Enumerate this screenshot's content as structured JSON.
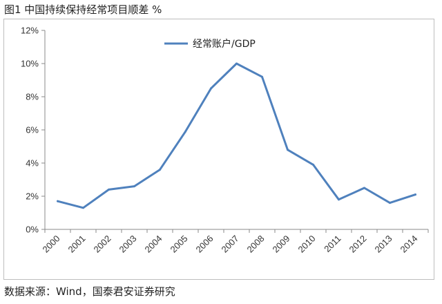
{
  "figure": {
    "title": "图1  中国持续保持经常项目顺差  %",
    "source": "数据来源：Wind，国泰君安证券研究"
  },
  "chart_data": {
    "type": "line",
    "title": "",
    "xlabel": "",
    "ylabel": "",
    "categories": [
      "2000",
      "2001",
      "2002",
      "2003",
      "2004",
      "2005",
      "2006",
      "2007",
      "2008",
      "2009",
      "2010",
      "2011",
      "2012",
      "2013",
      "2014"
    ],
    "series": [
      {
        "name": "经常账户/GDP",
        "values": [
          1.7,
          1.3,
          2.4,
          2.6,
          3.6,
          5.9,
          8.5,
          10.0,
          9.2,
          4.8,
          3.9,
          1.8,
          2.5,
          1.6,
          2.1
        ],
        "color": "#4f81bd"
      }
    ],
    "ylim": [
      0,
      12
    ],
    "yticks": [
      "0%",
      "2%",
      "4%",
      "6%",
      "8%",
      "10%",
      "12%"
    ],
    "grid": false,
    "legend": "top-center"
  }
}
